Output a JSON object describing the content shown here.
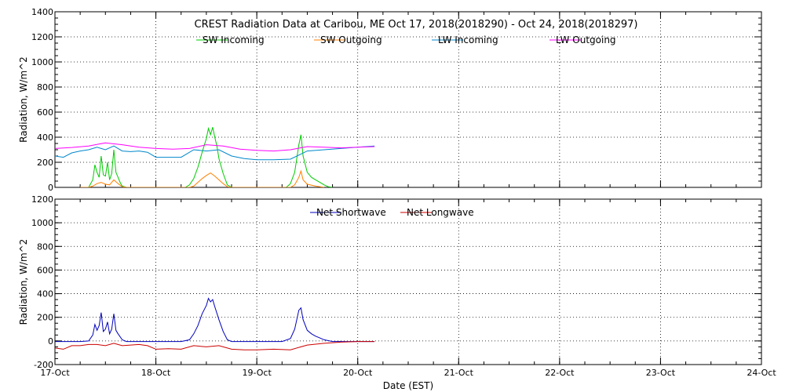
{
  "chart_data": [
    {
      "type": "line",
      "title": "CREST Radiation Data at Caribou, ME   Oct 17, 2018(2018290) - Oct 24, 2018(2018297)",
      "xlabel": "",
      "ylabel": "Radiation, W/m^2",
      "xlim": [
        "2018-10-17",
        "2018-10-24"
      ],
      "ylim": [
        0,
        1400
      ],
      "y_ticks": [
        0,
        200,
        400,
        600,
        800,
        1000,
        1200,
        1400
      ],
      "x_ticks": [
        "2018-10-17",
        "2018-10-18",
        "2018-10-19",
        "2018-10-20",
        "2018-10-21",
        "2018-10-22",
        "2018-10-23",
        "2018-10-24"
      ],
      "grid": true,
      "legend_position": "top",
      "series": [
        {
          "name": "SW Incoming",
          "color": "#00cc00",
          "points": [
            [
              "2018-10-17 06:00",
              0
            ],
            [
              "2018-10-17 08:00",
              0
            ],
            [
              "2018-10-17 09:00",
              60
            ],
            [
              "2018-10-17 09:30",
              180
            ],
            [
              "2018-10-17 10:00",
              120
            ],
            [
              "2018-10-17 10:30",
              80
            ],
            [
              "2018-10-17 11:00",
              250
            ],
            [
              "2018-10-17 11:30",
              100
            ],
            [
              "2018-10-17 12:00",
              90
            ],
            [
              "2018-10-17 12:30",
              200
            ],
            [
              "2018-10-17 13:00",
              60
            ],
            [
              "2018-10-17 13:30",
              110
            ],
            [
              "2018-10-17 14:00",
              300
            ],
            [
              "2018-10-17 14:30",
              120
            ],
            [
              "2018-10-17 15:00",
              80
            ],
            [
              "2018-10-17 15:30",
              40
            ],
            [
              "2018-10-17 16:00",
              10
            ],
            [
              "2018-10-17 17:00",
              0
            ],
            [
              "2018-10-18 06:00",
              0
            ],
            [
              "2018-10-18 07:00",
              0
            ],
            [
              "2018-10-18 08:00",
              20
            ],
            [
              "2018-10-18 09:00",
              70
            ],
            [
              "2018-10-18 10:00",
              160
            ],
            [
              "2018-10-18 11:00",
              280
            ],
            [
              "2018-10-18 12:00",
              390
            ],
            [
              "2018-10-18 12:30",
              470
            ],
            [
              "2018-10-18 13:00",
              420
            ],
            [
              "2018-10-18 13:30",
              480
            ],
            [
              "2018-10-18 14:00",
              400
            ],
            [
              "2018-10-18 14:30",
              330
            ],
            [
              "2018-10-18 15:00",
              230
            ],
            [
              "2018-10-18 16:00",
              110
            ],
            [
              "2018-10-18 17:00",
              20
            ],
            [
              "2018-10-18 18:00",
              0
            ],
            [
              "2018-10-19 06:00",
              0
            ],
            [
              "2018-10-19 07:00",
              0
            ],
            [
              "2018-10-19 08:00",
              30
            ],
            [
              "2018-10-19 09:00",
              120
            ],
            [
              "2018-10-19 10:00",
              340
            ],
            [
              "2018-10-19 10:30",
              420
            ],
            [
              "2018-10-19 11:00",
              250
            ],
            [
              "2018-10-19 12:00",
              120
            ],
            [
              "2018-10-19 13:00",
              80
            ],
            [
              "2018-10-19 14:00",
              60
            ],
            [
              "2018-10-19 15:00",
              40
            ],
            [
              "2018-10-19 16:00",
              20
            ],
            [
              "2018-10-19 17:00",
              5
            ],
            [
              "2018-10-19 18:00",
              0
            ]
          ]
        },
        {
          "name": "SW Outgoing",
          "color": "#ff8000",
          "points": [
            [
              "2018-10-17 06:00",
              0
            ],
            [
              "2018-10-17 08:00",
              0
            ],
            [
              "2018-10-17 09:00",
              10
            ],
            [
              "2018-10-17 10:00",
              30
            ],
            [
              "2018-10-17 11:00",
              40
            ],
            [
              "2018-10-17 12:00",
              25
            ],
            [
              "2018-10-17 13:00",
              20
            ],
            [
              "2018-10-17 14:00",
              60
            ],
            [
              "2018-10-17 15:00",
              30
            ],
            [
              "2018-10-17 16:00",
              5
            ],
            [
              "2018-10-17 17:00",
              0
            ],
            [
              "2018-10-18 06:00",
              0
            ],
            [
              "2018-10-18 08:00",
              0
            ],
            [
              "2018-10-18 09:00",
              10
            ],
            [
              "2018-10-18 10:00",
              40
            ],
            [
              "2018-10-18 11:00",
              70
            ],
            [
              "2018-10-18 12:00",
              95
            ],
            [
              "2018-10-18 13:00",
              115
            ],
            [
              "2018-10-18 14:00",
              90
            ],
            [
              "2018-10-18 15:00",
              60
            ],
            [
              "2018-10-18 16:00",
              30
            ],
            [
              "2018-10-18 17:00",
              5
            ],
            [
              "2018-10-18 18:00",
              0
            ],
            [
              "2018-10-19 06:00",
              0
            ],
            [
              "2018-10-19 08:00",
              0
            ],
            [
              "2018-10-19 09:00",
              20
            ],
            [
              "2018-10-19 10:00",
              80
            ],
            [
              "2018-10-19 10:30",
              130
            ],
            [
              "2018-10-19 11:00",
              60
            ],
            [
              "2018-10-19 12:00",
              25
            ],
            [
              "2018-10-19 14:00",
              10
            ],
            [
              "2018-10-19 16:00",
              0
            ]
          ]
        },
        {
          "name": "LW Incoming",
          "color": "#0088cc",
          "points": [
            [
              "2018-10-17 00:00",
              250
            ],
            [
              "2018-10-17 02:00",
              240
            ],
            [
              "2018-10-17 04:00",
              275
            ],
            [
              "2018-10-17 06:00",
              290
            ],
            [
              "2018-10-17 08:00",
              300
            ],
            [
              "2018-10-17 10:00",
              320
            ],
            [
              "2018-10-17 12:00",
              300
            ],
            [
              "2018-10-17 14:00",
              330
            ],
            [
              "2018-10-17 16:00",
              290
            ],
            [
              "2018-10-17 18:00",
              285
            ],
            [
              "2018-10-17 20:00",
              290
            ],
            [
              "2018-10-17 22:00",
              280
            ],
            [
              "2018-10-18 00:00",
              240
            ],
            [
              "2018-10-18 03:00",
              240
            ],
            [
              "2018-10-18 06:00",
              240
            ],
            [
              "2018-10-18 09:00",
              300
            ],
            [
              "2018-10-18 12:00",
              290
            ],
            [
              "2018-10-18 15:00",
              300
            ],
            [
              "2018-10-18 18:00",
              250
            ],
            [
              "2018-10-18 21:00",
              230
            ],
            [
              "2018-10-19 00:00",
              220
            ],
            [
              "2018-10-19 04:00",
              220
            ],
            [
              "2018-10-19 08:00",
              225
            ],
            [
              "2018-10-19 12:00",
              290
            ],
            [
              "2018-10-19 16:00",
              300
            ],
            [
              "2018-10-19 20:00",
              310
            ],
            [
              "2018-10-20 00:00",
              320
            ],
            [
              "2018-10-20 04:00",
              330
            ]
          ]
        },
        {
          "name": "LW Outgoing",
          "color": "#ff00ff",
          "points": [
            [
              "2018-10-17 00:00",
              310
            ],
            [
              "2018-10-17 04:00",
              318
            ],
            [
              "2018-10-17 08:00",
              330
            ],
            [
              "2018-10-17 12:00",
              355
            ],
            [
              "2018-10-17 16:00",
              340
            ],
            [
              "2018-10-17 20:00",
              320
            ],
            [
              "2018-10-18 00:00",
              310
            ],
            [
              "2018-10-18 04:00",
              305
            ],
            [
              "2018-10-18 08:00",
              310
            ],
            [
              "2018-10-18 12:00",
              340
            ],
            [
              "2018-10-18 16:00",
              330
            ],
            [
              "2018-10-18 20:00",
              305
            ],
            [
              "2018-10-19 00:00",
              295
            ],
            [
              "2018-10-19 04:00",
              290
            ],
            [
              "2018-10-19 08:00",
              300
            ],
            [
              "2018-10-19 12:00",
              325
            ],
            [
              "2018-10-19 16:00",
              320
            ],
            [
              "2018-10-19 20:00",
              315
            ],
            [
              "2018-10-20 00:00",
              320
            ],
            [
              "2018-10-20 04:00",
              325
            ]
          ]
        }
      ]
    },
    {
      "type": "line",
      "title": "",
      "xlabel": "Date (EST)",
      "ylabel": "Radiation, W/m^2",
      "xlim": [
        "2018-10-17",
        "2018-10-24"
      ],
      "ylim": [
        -200,
        1200
      ],
      "y_ticks": [
        -200,
        0,
        200,
        400,
        600,
        800,
        1000,
        1200
      ],
      "x_ticks": [
        "2018-10-17",
        "2018-10-18",
        "2018-10-19",
        "2018-10-20",
        "2018-10-21",
        "2018-10-22",
        "2018-10-23",
        "2018-10-24"
      ],
      "x_tick_labels": [
        "17-Oct",
        "18-Oct",
        "19-Oct",
        "20-Oct",
        "21-Oct",
        "22-Oct",
        "23-Oct",
        "24-Oct"
      ],
      "grid": true,
      "legend_position": "top",
      "series": [
        {
          "name": "Net Shortwave",
          "color": "#0000bb",
          "points": [
            [
              "2018-10-17 00:00",
              -5
            ],
            [
              "2018-10-17 06:00",
              -5
            ],
            [
              "2018-10-17 08:00",
              0
            ],
            [
              "2018-10-17 09:00",
              50
            ],
            [
              "2018-10-17 09:30",
              140
            ],
            [
              "2018-10-17 10:00",
              90
            ],
            [
              "2018-10-17 10:30",
              130
            ],
            [
              "2018-10-17 11:00",
              240
            ],
            [
              "2018-10-17 11:30",
              80
            ],
            [
              "2018-10-17 12:00",
              100
            ],
            [
              "2018-10-17 12:30",
              160
            ],
            [
              "2018-10-17 13:00",
              60
            ],
            [
              "2018-10-17 13:30",
              100
            ],
            [
              "2018-10-17 14:00",
              230
            ],
            [
              "2018-10-17 14:30",
              90
            ],
            [
              "2018-10-17 15:00",
              60
            ],
            [
              "2018-10-17 16:00",
              10
            ],
            [
              "2018-10-17 17:00",
              -5
            ],
            [
              "2018-10-18 06:00",
              -5
            ],
            [
              "2018-10-18 08:00",
              10
            ],
            [
              "2018-10-18 09:00",
              60
            ],
            [
              "2018-10-18 10:00",
              130
            ],
            [
              "2018-10-18 11:00",
              230
            ],
            [
              "2018-10-18 12:00",
              300
            ],
            [
              "2018-10-18 12:30",
              360
            ],
            [
              "2018-10-18 13:00",
              330
            ],
            [
              "2018-10-18 13:30",
              350
            ],
            [
              "2018-10-18 14:00",
              290
            ],
            [
              "2018-10-18 15:00",
              180
            ],
            [
              "2018-10-18 16:00",
              80
            ],
            [
              "2018-10-18 17:00",
              10
            ],
            [
              "2018-10-18 18:00",
              -5
            ],
            [
              "2018-10-19 06:00",
              -5
            ],
            [
              "2018-10-19 08:00",
              20
            ],
            [
              "2018-10-19 09:00",
              100
            ],
            [
              "2018-10-19 10:00",
              260
            ],
            [
              "2018-10-19 10:30",
              280
            ],
            [
              "2018-10-19 11:00",
              180
            ],
            [
              "2018-10-19 12:00",
              90
            ],
            [
              "2018-10-19 13:00",
              60
            ],
            [
              "2018-10-19 14:00",
              40
            ],
            [
              "2018-10-19 15:00",
              25
            ],
            [
              "2018-10-19 16:00",
              10
            ],
            [
              "2018-10-19 18:00",
              -5
            ],
            [
              "2018-10-20 00:00",
              -5
            ],
            [
              "2018-10-20 04:00",
              -5
            ]
          ]
        },
        {
          "name": "Net Longwave",
          "color": "#cc0000",
          "points": [
            [
              "2018-10-17 00:00",
              -60
            ],
            [
              "2018-10-17 02:00",
              -70
            ],
            [
              "2018-10-17 04:00",
              -40
            ],
            [
              "2018-10-17 06:00",
              -40
            ],
            [
              "2018-10-17 08:00",
              -30
            ],
            [
              "2018-10-17 10:00",
              -30
            ],
            [
              "2018-10-17 12:00",
              -40
            ],
            [
              "2018-10-17 14:00",
              -20
            ],
            [
              "2018-10-17 16:00",
              -40
            ],
            [
              "2018-10-17 18:00",
              -35
            ],
            [
              "2018-10-17 20:00",
              -30
            ],
            [
              "2018-10-17 22:00",
              -40
            ],
            [
              "2018-10-18 00:00",
              -70
            ],
            [
              "2018-10-18 03:00",
              -65
            ],
            [
              "2018-10-18 06:00",
              -70
            ],
            [
              "2018-10-18 09:00",
              -40
            ],
            [
              "2018-10-18 12:00",
              -50
            ],
            [
              "2018-10-18 15:00",
              -40
            ],
            [
              "2018-10-18 18:00",
              -70
            ],
            [
              "2018-10-18 21:00",
              -75
            ],
            [
              "2018-10-19 00:00",
              -75
            ],
            [
              "2018-10-19 04:00",
              -70
            ],
            [
              "2018-10-19 08:00",
              -75
            ],
            [
              "2018-10-19 12:00",
              -35
            ],
            [
              "2018-10-19 16:00",
              -20
            ],
            [
              "2018-10-19 20:00",
              -10
            ],
            [
              "2018-10-20 00:00",
              -5
            ],
            [
              "2018-10-20 04:00",
              -5
            ]
          ]
        }
      ]
    }
  ]
}
